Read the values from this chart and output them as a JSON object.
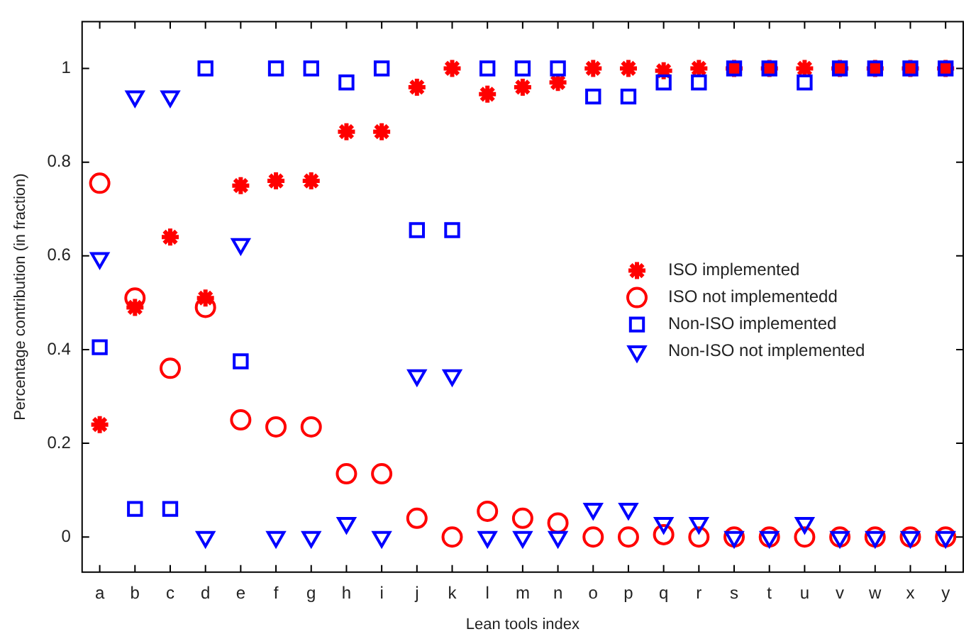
{
  "chart_data": {
    "type": "scatter",
    "xlabel": "Lean tools index",
    "ylabel": "Percentage contribution (in fraction)",
    "categories": [
      "a",
      "b",
      "c",
      "d",
      "e",
      "f",
      "g",
      "h",
      "i",
      "j",
      "k",
      "l",
      "m",
      "n",
      "o",
      "p",
      "q",
      "r",
      "s",
      "t",
      "u",
      "v",
      "w",
      "x",
      "y"
    ],
    "ylim": [
      -0.075,
      1.1
    ],
    "yticks": [
      0,
      0.2,
      0.4,
      0.6,
      0.8,
      1
    ],
    "grid": false,
    "legend": "right",
    "series": [
      {
        "name": "ISO implemented",
        "color": "#ff0000",
        "marker": "cross",
        "values": [
          0.24,
          0.49,
          0.64,
          0.51,
          0.75,
          0.76,
          0.76,
          0.865,
          0.865,
          0.96,
          1,
          0.945,
          0.96,
          0.97,
          1,
          1,
          0.995,
          1,
          1,
          1,
          1,
          1,
          1,
          1,
          1
        ]
      },
      {
        "name": "ISO not implementedd",
        "color": "#ff0000",
        "marker": "circle",
        "values": [
          0.755,
          0.51,
          0.36,
          0.49,
          0.25,
          0.235,
          0.235,
          0.135,
          0.135,
          0.04,
          0,
          0.055,
          0.04,
          0.03,
          0,
          0,
          0.005,
          0,
          0,
          0,
          0,
          0,
          0,
          0,
          0
        ]
      },
      {
        "name": "Non-ISO implemented",
        "color": "#0000ff",
        "marker": "square",
        "values": [
          0.405,
          0.06,
          0.06,
          1,
          0.375,
          1,
          1,
          0.97,
          1,
          0.655,
          0.655,
          1,
          1,
          1,
          0.94,
          0.94,
          0.97,
          0.97,
          1,
          1,
          0.97,
          1,
          1,
          1,
          1
        ]
      },
      {
        "name": "Non-ISO not implemented",
        "color": "#0000ff",
        "marker": "triangle",
        "values": [
          0.595,
          0.94,
          0.94,
          0,
          0.625,
          0,
          0,
          0.03,
          0,
          0.345,
          0.345,
          0,
          0,
          0,
          0.06,
          0.06,
          0.03,
          0.03,
          0,
          0,
          0.03,
          0,
          0,
          0,
          0
        ]
      }
    ]
  }
}
